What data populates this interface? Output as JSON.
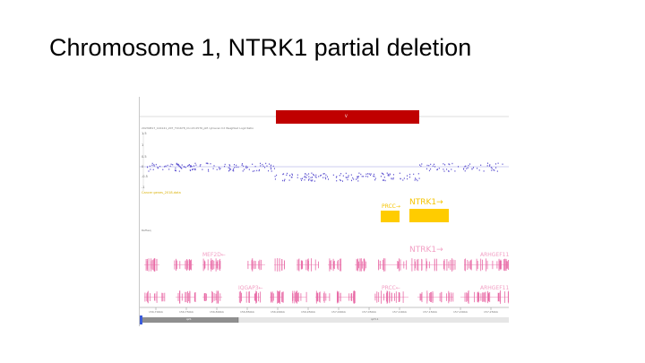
{
  "slide": {
    "title": "Chromosome 1, NTRK1 partial deletion"
  },
  "figure": {
    "deleted_segment_label": "V",
    "sample_label": "20230817_144141_207_TU1678_CU-23-0576_pM cytoscan hd  Weighted Log2 Ratio",
    "y_ticks": [
      "1.5",
      "1",
      "0.5",
      "0",
      "-0.5",
      "-1"
    ],
    "track_label_yellow": "Cancer genes_2018-data",
    "track_label_refseq": "RefSeq",
    "genes": {
      "prcc_yellow": "PRCC→",
      "ntrk1_yellow": "NTRK1→",
      "mef2d": "MEF2D←",
      "ntrk1_pink": "NTRK1→",
      "arhgef11_top": "ARHGEF11",
      "iqgap3": "IQGAP3←",
      "prcc_pink": "PRCC←",
      "arhgef11_bottom": "ARHGEF11"
    },
    "coordinates": [
      "156,700kb",
      "156,750kb",
      "156,800kb",
      "156,850kb",
      "156,900kb",
      "156,950kb",
      "157,000kb",
      "157,050kb",
      "157,100kb",
      "157,150kb",
      "157,200kb",
      "157,250kb"
    ],
    "scrollbar_labels": [
      "q21",
      "q23.1"
    ],
    "colors": {
      "deletion_bar": "#c00000",
      "probes": "#5a4fcf",
      "cancer_genes": "#ffcc00",
      "refseq_genes": "#e86aa6"
    }
  }
}
